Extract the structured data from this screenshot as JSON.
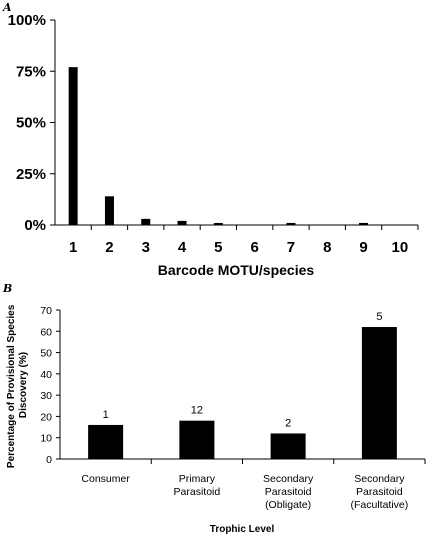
{
  "chart_data": [
    {
      "panel": "A",
      "type": "bar",
      "categories": [
        "1",
        "2",
        "3",
        "4",
        "5",
        "6",
        "7",
        "8",
        "9",
        "10"
      ],
      "values": [
        77,
        14,
        3,
        2,
        1,
        0,
        1,
        0,
        1,
        0
      ],
      "value_unit": "%",
      "xlabel": "Barcode MOTU/species",
      "ylabel": "",
      "ylim": [
        0,
        100
      ],
      "yticks": [
        "0%",
        "25%",
        "50%",
        "75%",
        "100%"
      ],
      "grid": false,
      "color": "#000000"
    },
    {
      "panel": "B",
      "type": "bar",
      "categories": [
        [
          "Consumer"
        ],
        [
          "Primary",
          "Parasitoid"
        ],
        [
          "Secondary",
          "Parasitoid",
          "(Obligate)"
        ],
        [
          "Secondary",
          "Parasitoid",
          "(Facultative)"
        ]
      ],
      "values": [
        16,
        18,
        12,
        62
      ],
      "data_labels": [
        "1",
        "12",
        "2",
        "5"
      ],
      "xlabel": "Trophic Level",
      "ylabel": [
        "Percentage of Provisional Species",
        "Discovery (%)"
      ],
      "ylim": [
        0,
        70
      ],
      "yticks": [
        "0",
        "10",
        "20",
        "30",
        "40",
        "50",
        "60",
        "70"
      ],
      "grid": false,
      "color": "#000000"
    }
  ]
}
